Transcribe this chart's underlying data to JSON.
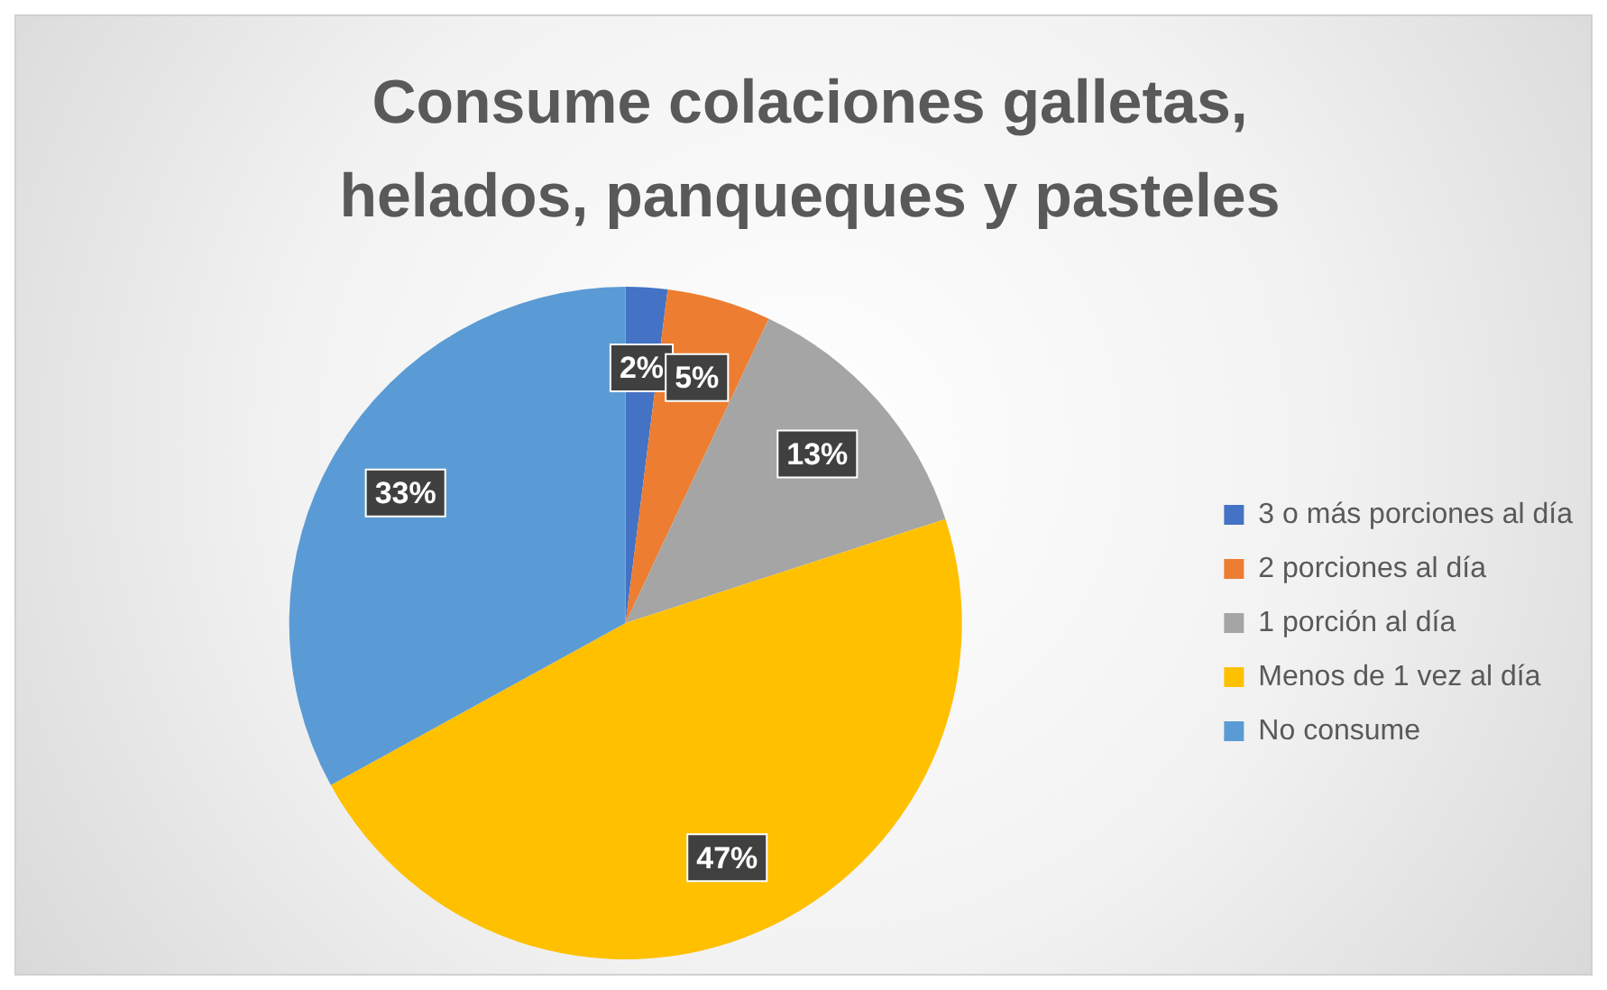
{
  "chart_data": {
    "type": "pie",
    "title": "Consume colaciones galletas, helados, panqueques y pasteles",
    "categories": [
      "3 o más porciones al día",
      "2 porciones al día",
      "1 porción al día",
      "Menos de 1 vez al día",
      "No consume"
    ],
    "values": [
      2,
      5,
      13,
      47,
      33
    ],
    "colors": [
      "#4472c4",
      "#ed7d31",
      "#a5a5a5",
      "#ffc000",
      "#5b9bd5"
    ],
    "value_labels": [
      "2%",
      "5%",
      "13%",
      "47%",
      "33%"
    ],
    "legend": "right"
  }
}
